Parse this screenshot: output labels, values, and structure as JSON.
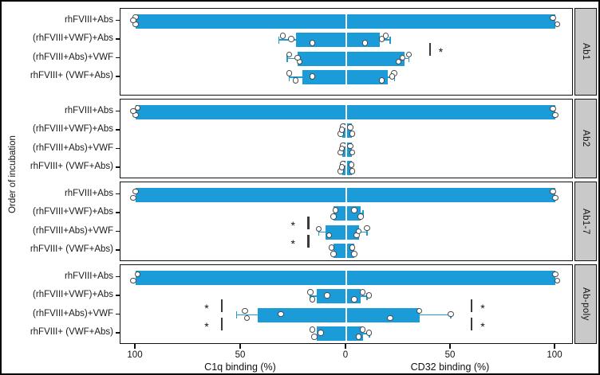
{
  "chart_data": {
    "type": "bar",
    "variant": "diverging-horizontal-faceted",
    "title": "",
    "ylabel": "Order of incubation",
    "xlabel_left": "C1q binding (%)",
    "xlabel_right": "CD32 binding (%)",
    "axis_range_each_side": [
      0,
      100
    ],
    "grid": false,
    "bar_color": "#1b9cd9",
    "strip_color": "#c9c9c9",
    "point_style": "open-circle",
    "categories": [
      "rhFVIII+Abs",
      "(rhFVIII+VWF)+Abs",
      "(rhFVIII+Abs)+VWF",
      "rhFVIII+ (VWF+Abs)"
    ],
    "x_ticks": [
      {
        "label": "100",
        "side": "left",
        "value": 100
      },
      {
        "label": "50",
        "side": "left",
        "value": 50
      },
      {
        "label": "0",
        "side": "left",
        "value": 0
      },
      {
        "label": "50",
        "side": "right",
        "value": 50
      },
      {
        "label": "100",
        "side": "right",
        "value": 100
      }
    ],
    "panels": [
      {
        "label": "Ab1",
        "rows": [
          {
            "c1q": {
              "bar": 100,
              "points": [
                100,
                100,
                101
              ]
            },
            "cd32": {
              "bar": 100,
              "points": [
                99,
                101
              ]
            }
          },
          {
            "c1q": {
              "bar": 24,
              "whisker": 32,
              "points": [
                30,
                16,
                26
              ]
            },
            "cd32": {
              "bar": 16,
              "whisker": 21,
              "points": [
                19,
                9,
                17
              ]
            }
          },
          {
            "c1q": {
              "bar": 23,
              "whisker": 28,
              "points": [
                27,
                22,
                23
              ]
            },
            "cd32": {
              "bar": 28,
              "whisker": 30,
              "points": [
                30,
                25,
                27
              ]
            }
          },
          {
            "c1q": {
              "bar": 21,
              "whisker": 27,
              "points": [
                27,
                24,
                16
              ]
            },
            "cd32": {
              "bar": 20,
              "whisker": 23,
              "points": [
                23,
                17,
                22
              ]
            }
          }
        ],
        "significance": [
          {
            "side": "right",
            "line_at": 40,
            "between_rows": [
              2,
              3
            ],
            "label": "*"
          }
        ]
      },
      {
        "label": "Ab2",
        "rows": [
          {
            "c1q": {
              "bar": 100,
              "points": [
                99,
                100,
                101
              ]
            },
            "cd32": {
              "bar": 100,
              "points": [
                99,
                100
              ]
            }
          },
          {
            "c1q": {
              "bar": 2,
              "points": [
                1.5,
                2.5,
                2
              ]
            },
            "cd32": {
              "bar": 2.5,
              "points": [
                2,
                3
              ]
            }
          },
          {
            "c1q": {
              "bar": 2,
              "points": [
                1.5,
                2.5,
                2
              ]
            },
            "cd32": {
              "bar": 2.5,
              "points": [
                2,
                3
              ]
            }
          },
          {
            "c1q": {
              "bar": 2,
              "points": [
                1.5,
                2.5,
                2
              ]
            },
            "cd32": {
              "bar": 2.5,
              "points": [
                2.5,
                3
              ]
            }
          }
        ],
        "significance": []
      },
      {
        "label": "Ab1-7",
        "rows": [
          {
            "c1q": {
              "bar": 100,
              "points": [
                100,
                101
              ]
            },
            "cd32": {
              "bar": 100,
              "points": [
                99,
                100
              ]
            }
          },
          {
            "c1q": {
              "bar": 6,
              "points": [
                5,
                6
              ]
            },
            "cd32": {
              "bar": 7,
              "whisker": 8,
              "points": [
                4,
                7
              ]
            }
          },
          {
            "c1q": {
              "bar": 10,
              "whisker": 13,
              "points": [
                13,
                8
              ]
            },
            "cd32": {
              "bar": 6,
              "whisker": 10,
              "points": [
                10,
                5,
                6
              ]
            }
          },
          {
            "c1q": {
              "bar": 6,
              "points": [
                7,
                6
              ]
            },
            "cd32": {
              "bar": 4,
              "points": [
                3,
                4
              ]
            }
          }
        ],
        "significance": [
          {
            "side": "left",
            "line_at": 18,
            "between_rows": [
              2,
              3
            ],
            "label": "*"
          },
          {
            "side": "left",
            "line_at": 18,
            "between_rows": [
              3,
              4
            ],
            "label": "*"
          }
        ]
      },
      {
        "label": "Ab-poly",
        "rows": [
          {
            "c1q": {
              "bar": 100,
              "points": [
                99,
                101
              ]
            },
            "cd32": {
              "bar": 100,
              "points": [
                100,
                101
              ]
            }
          },
          {
            "c1q": {
              "bar": 14,
              "whisker": 17,
              "points": [
                17,
                16,
                9
              ]
            },
            "cd32": {
              "bar": 7,
              "whisker": 10,
              "points": [
                8,
                4,
                11
              ]
            }
          },
          {
            "c1q": {
              "bar": 42,
              "whisker": 52,
              "points": [
                48,
                47,
                31
              ]
            },
            "cd32": {
              "bar": 35,
              "whisker": 50,
              "points": [
                35,
                21,
                50
              ]
            }
          },
          {
            "c1q": {
              "bar": 14,
              "points": [
                16,
                15,
                12
              ]
            },
            "cd32": {
              "bar": 8,
              "whisker": 11,
              "points": [
                8,
                6,
                11
              ]
            }
          }
        ],
        "significance": [
          {
            "side": "left",
            "line_at": 59,
            "between_rows": [
              2,
              3
            ],
            "label": "*"
          },
          {
            "side": "left",
            "line_at": 59,
            "between_rows": [
              3,
              4
            ],
            "label": "*"
          },
          {
            "side": "right",
            "line_at": 60,
            "between_rows": [
              2,
              3
            ],
            "label": "*"
          },
          {
            "side": "right",
            "line_at": 60,
            "between_rows": [
              3,
              4
            ],
            "label": "*"
          }
        ]
      }
    ]
  }
}
